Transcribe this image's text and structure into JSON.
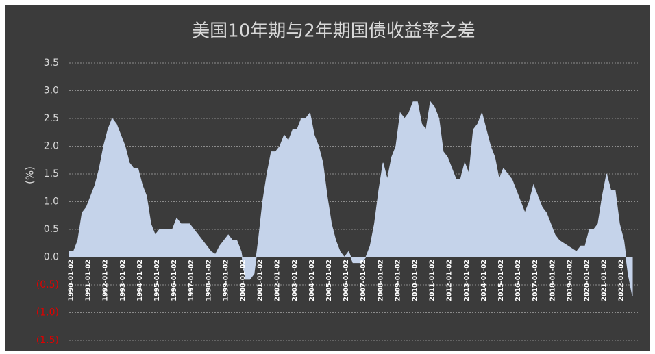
{
  "chart_data": {
    "type": "area",
    "title": "美国10年期与2年期国债收益率之差",
    "y_label": "(%)",
    "categories": [
      "1990-01-02",
      null,
      null,
      null,
      "1991-01-02",
      null,
      null,
      null,
      "1992-01-02",
      null,
      null,
      null,
      "1993-01-02",
      null,
      null,
      null,
      "1994-01-02",
      null,
      null,
      null,
      "1995-01-02",
      null,
      null,
      null,
      "1996-01-02",
      null,
      null,
      null,
      "1997-01-02",
      null,
      null,
      null,
      "1998-01-02",
      null,
      null,
      null,
      "1999-01-02",
      null,
      null,
      null,
      "2000-01-02",
      null,
      null,
      null,
      "2001-01-02",
      null,
      null,
      null,
      "2002-01-02",
      null,
      null,
      null,
      "2003-01-02",
      null,
      null,
      null,
      "2004-01-02",
      null,
      null,
      null,
      "2005-01-02",
      null,
      null,
      null,
      "2006-01-02",
      null,
      null,
      null,
      "2007-01-02",
      null,
      null,
      null,
      "2008-01-02",
      null,
      null,
      null,
      "2009-01-02",
      null,
      null,
      null,
      "2010-01-02",
      null,
      null,
      null,
      "2011-01-02",
      null,
      null,
      null,
      "2012-01-02",
      null,
      null,
      null,
      "2013-01-02",
      null,
      null,
      null,
      "2014-01-02",
      null,
      null,
      null,
      "2015-01-02",
      null,
      null,
      null,
      "2016-01-02",
      null,
      null,
      null,
      "2017-01-02",
      null,
      null,
      null,
      "2018-01-02",
      null,
      null,
      null,
      "2019-01-02",
      null,
      null,
      null,
      "2020-01-02",
      null,
      null,
      null,
      "2021-01-02",
      null,
      null,
      null,
      "2022-01-02",
      null,
      null,
      null
    ],
    "values": [
      0.1,
      0.1,
      0.3,
      0.8,
      0.9,
      1.1,
      1.3,
      1.6,
      2.0,
      2.3,
      2.5,
      2.4,
      2.2,
      2.0,
      1.7,
      1.6,
      1.6,
      1.3,
      1.1,
      0.6,
      0.4,
      0.5,
      0.5,
      0.5,
      0.5,
      0.7,
      0.6,
      0.6,
      0.6,
      0.5,
      0.4,
      0.3,
      0.2,
      0.1,
      0.05,
      0.2,
      0.3,
      0.4,
      0.3,
      0.3,
      0.1,
      -0.4,
      -0.4,
      -0.3,
      0.3,
      1.0,
      1.5,
      1.9,
      1.9,
      2.0,
      2.2,
      2.1,
      2.3,
      2.3,
      2.5,
      2.5,
      2.6,
      2.2,
      2.0,
      1.7,
      1.1,
      0.6,
      0.3,
      0.1,
      0.0,
      0.1,
      -0.1,
      -0.1,
      -0.1,
      0.0,
      0.2,
      0.6,
      1.2,
      1.7,
      1.4,
      1.8,
      2.0,
      2.6,
      2.5,
      2.6,
      2.8,
      2.8,
      2.4,
      2.3,
      2.8,
      2.7,
      2.5,
      1.9,
      1.8,
      1.6,
      1.4,
      1.4,
      1.7,
      1.5,
      2.3,
      2.4,
      2.6,
      2.3,
      2.0,
      1.8,
      1.4,
      1.6,
      1.5,
      1.4,
      1.2,
      1.0,
      0.8,
      1.0,
      1.3,
      1.1,
      0.9,
      0.8,
      0.6,
      0.4,
      0.3,
      0.25,
      0.2,
      0.15,
      0.1,
      0.2,
      0.2,
      0.5,
      0.5,
      0.6,
      1.1,
      1.5,
      1.2,
      1.2,
      0.6,
      0.3,
      -0.3,
      -0.7
    ],
    "color": "#c5d3ea",
    "ylim": [
      -1.5,
      3.5
    ],
    "yticks": [
      {
        "value": -1.5,
        "label": "(1.5)"
      },
      {
        "value": -1.0,
        "label": "(1.0)"
      },
      {
        "value": -0.5,
        "label": "(0.5)"
      },
      {
        "value": 0,
        "label": "0.0"
      },
      0.5,
      {
        "value": 1.0,
        "label": "1.0"
      },
      1.5,
      {
        "value": 2.0,
        "label": "2.0"
      },
      2.5,
      {
        "value": 3.0,
        "label": "3.0"
      },
      3.5
    ],
    "negative_tick_color": "#e00000",
    "grid": true
  }
}
